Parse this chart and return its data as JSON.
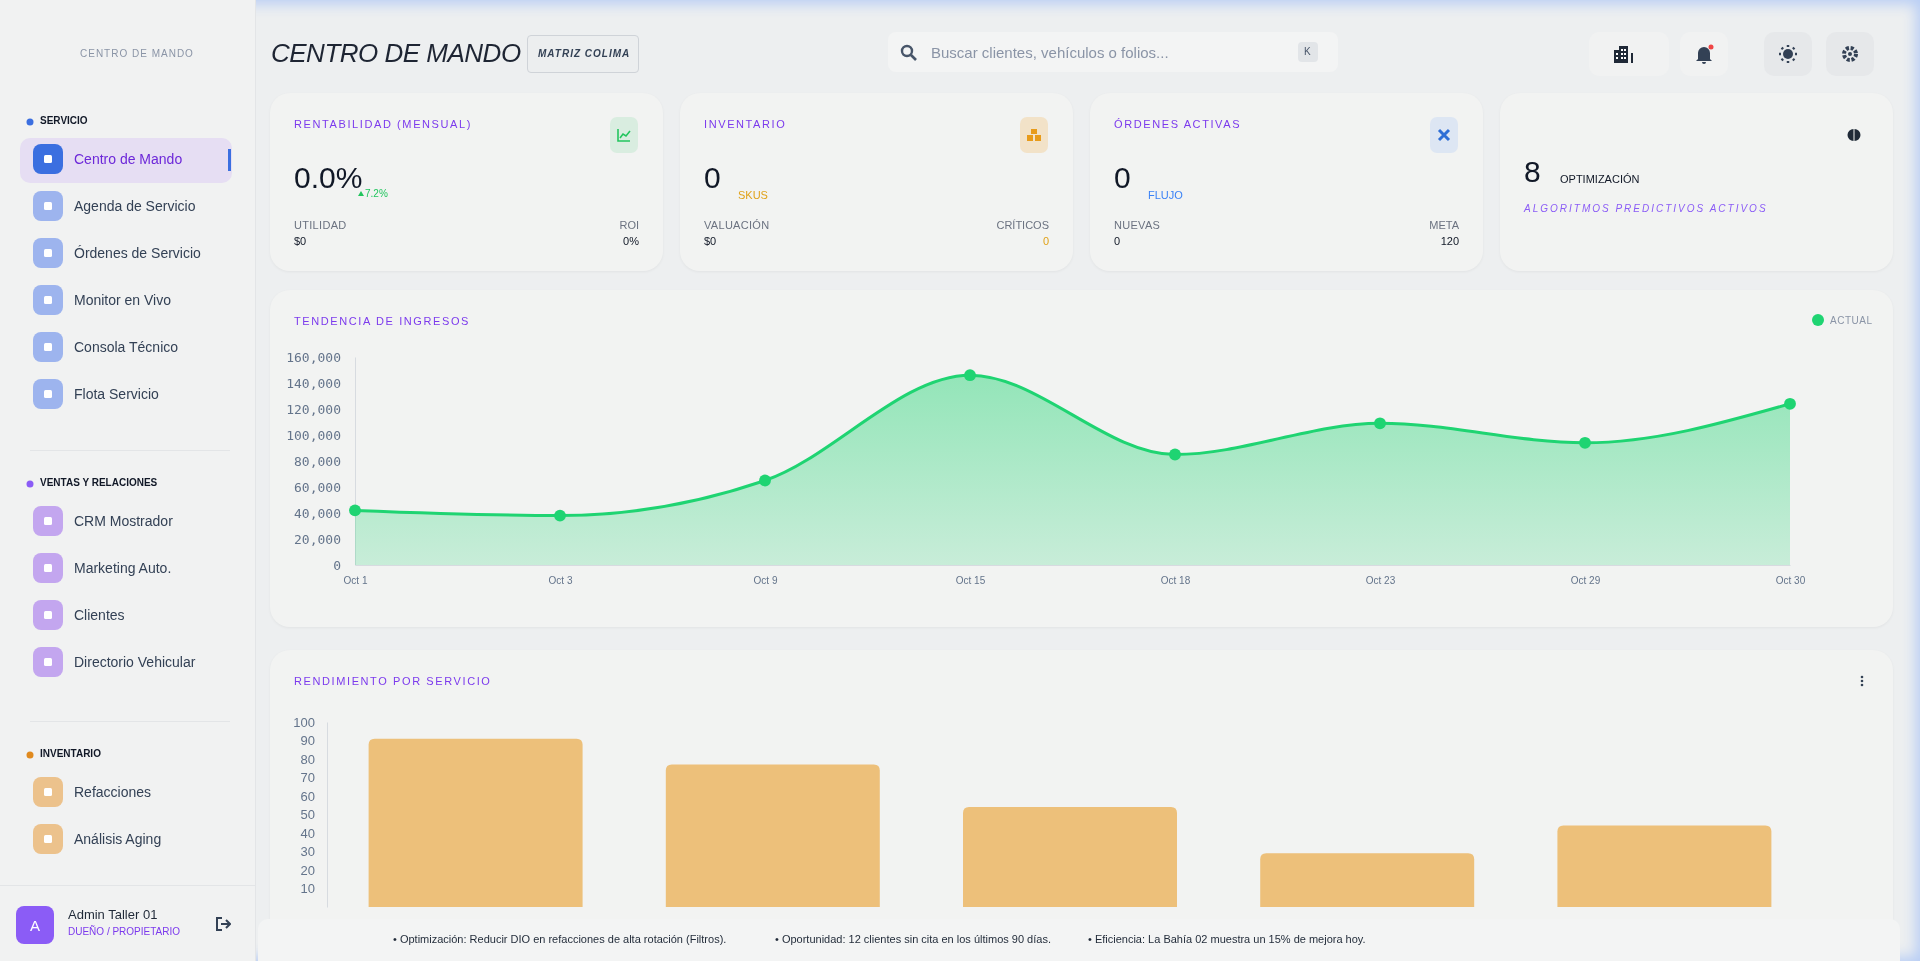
{
  "chart_data": [
    {
      "type": "other",
      "title": "CENTRO DE MANDO"
    },
    {
      "type": "other",
      "title": "SERVICIO",
      "annotations": [
        "Centro de Mando",
        "Agenda de Servicio",
        "Órdenes de Servicio",
        "Monitor en Vivo",
        "Consola Técnico",
        "Flota Servicio"
      ]
    },
    {
      "type": "other",
      "title": "VENTAS Y RELACIONES",
      "annotations": [
        "CRM Mostrador",
        "Marketing Auto.",
        "Clientes",
        "Directorio Vehicular"
      ]
    },
    {
      "type": "other",
      "title": "INVENTARIO",
      "annotations": [
        "Refacciones",
        "Análisis Aging"
      ]
    },
    {
      "type": "other",
      "title": "Admin Taller 01",
      "subtitle": "DUEÑO / PROPIETARIO",
      "annotations": [
        "A"
      ]
    },
    {
      "type": "other",
      "title": "CENTRO DE MANDO",
      "annotations": [
        "MATRIZ COLIMA",
        "Buscar clientes, vehículos o folios...",
        "K"
      ]
    },
    {
      "type": "other",
      "title": "RENTABILIDAD (MENSUAL)",
      "annotations": [
        "0.0%",
        "7.2%",
        "UTILIDAD",
        "$0",
        "ROI",
        "0%"
      ]
    },
    {
      "type": "other",
      "title": "INVENTARIO",
      "annotations": [
        "0",
        "SKUS",
        "VALUACIÓN",
        "$0",
        "CRÍTICOS",
        "0"
      ]
    },
    {
      "type": "other",
      "title": "ÓRDENES ACTIVAS",
      "annotations": [
        "0",
        "FLUJO",
        "NUEVAS",
        "0",
        "META",
        "120"
      ]
    },
    {
      "type": "other",
      "annotations": [
        "8",
        "OPTIMIZACIÓN",
        "ALGORITMOS PREDICTIVOS ACTIVOS"
      ]
    },
    {
      "type": "area",
      "title": "TENDENCIA DE INGRESOS",
      "categories": [
        "Oct 1",
        "Oct 3",
        "Oct 9",
        "Oct 15",
        "Oct 18",
        "Oct 23",
        "Oct 29",
        "Oct 30"
      ],
      "series": [
        {
          "name": "ACTUAL",
          "color": "#1fd472",
          "values": [
            42000,
            38000,
            65000,
            146000,
            85000,
            109000,
            94000,
            124000
          ]
        }
      ],
      "ylim": [
        0,
        160000
      ],
      "yticks": [
        0,
        {
          "value": 20000,
          "label": "20,000"
        },
        {
          "value": 40000,
          "label": "40,000"
        },
        {
          "value": 60000,
          "label": "60,000"
        },
        {
          "value": 80000,
          "label": "80,000"
        },
        {
          "value": 100000,
          "label": "100,000"
        },
        {
          "value": 120000,
          "label": "120,000"
        },
        {
          "value": 140000,
          "label": "140,000"
        },
        {
          "value": 160000,
          "label": "160,000"
        }
      ],
      "marker": "circle",
      "legend": "top right",
      "grid": false
    },
    {
      "type": "bar",
      "title": "RENDIMIENTO POR SERVICIO",
      "categories": [
        null,
        null,
        null,
        null,
        null
      ],
      "series": [
        {
          "color": "#edc07a",
          "values": [
            91,
            77,
            54,
            29,
            44
          ]
        }
      ],
      "ylim": [
        0,
        100
      ],
      "yticks": [
        10,
        20,
        30,
        40,
        50,
        60,
        70,
        80,
        90,
        100
      ],
      "grid": false
    },
    {
      "type": "other",
      "annotations": [
        "• Optimización: Reducir DIO en refacciones de alta rotación (Filtros).",
        "• Oportunidad: 12 clientes sin cita en los últimos 90 días.",
        "• Eficiencia: La Bahía 02 muestra un 15% de mejora hoy."
      ]
    }
  ]
}
